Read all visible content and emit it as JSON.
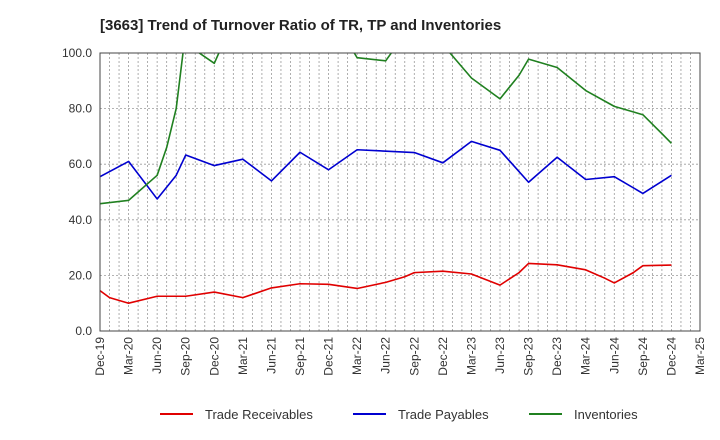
{
  "chart_data": {
    "type": "line",
    "title": "[3663]  Trend of Turnover Ratio of TR, TP and Inventories",
    "xlabel": "",
    "ylabel": "",
    "ylim": [
      0,
      100
    ],
    "y_ticks": [
      "0.0",
      "20.0",
      "40.0",
      "60.0",
      "80.0",
      "100.0"
    ],
    "x_ticks": [
      "Dec-19",
      "Mar-20",
      "Jun-20",
      "Sep-20",
      "Dec-20",
      "Mar-21",
      "Jun-21",
      "Sep-21",
      "Dec-21",
      "Mar-22",
      "Jun-22",
      "Sep-22",
      "Dec-22",
      "Mar-23",
      "Jun-23",
      "Sep-23",
      "Dec-23",
      "Mar-24",
      "Jun-24",
      "Sep-24",
      "Dec-24",
      "Mar-25"
    ],
    "x": [
      "Dec-19",
      "Jan-20",
      "Feb-20",
      "Mar-20",
      "Apr-20",
      "May-20",
      "Jun-20",
      "Jul-20",
      "Aug-20",
      "Sep-20",
      "Oct-20",
      "Nov-20",
      "Dec-20",
      "Jan-21",
      "Feb-21",
      "Mar-21",
      "Apr-21",
      "May-21",
      "Jun-21",
      "Jul-21",
      "Aug-21",
      "Sep-21",
      "Oct-21",
      "Nov-21",
      "Dec-21",
      "Jan-22",
      "Feb-22",
      "Mar-22",
      "Apr-22",
      "May-22",
      "Jun-22",
      "Jul-22",
      "Aug-22",
      "Sep-22",
      "Oct-22",
      "Nov-22",
      "Dec-22",
      "Jan-23",
      "Feb-23",
      "Mar-23",
      "Apr-23",
      "May-23",
      "Jun-23",
      "Jul-23",
      "Aug-23",
      "Sep-23",
      "Oct-23",
      "Nov-23",
      "Dec-23",
      "Jan-24",
      "Feb-24",
      "Mar-24",
      "Apr-24",
      "May-24",
      "Jun-24",
      "Jul-24",
      "Aug-24",
      "Sep-24",
      "Oct-24",
      "Nov-24",
      "Dec-24",
      "Jan-25",
      "Feb-25",
      "Mar-25"
    ],
    "grid": true,
    "legend_position": "bottom",
    "series": [
      {
        "name": "Trade Receivables",
        "color": "#e00000",
        "points": [
          [
            "Dec-19",
            14.5
          ],
          [
            "Jan-20",
            12
          ],
          [
            "Mar-20",
            10
          ],
          [
            "Jun-20",
            12.5
          ],
          [
            "Sep-20",
            12.5
          ],
          [
            "Dec-20",
            14
          ],
          [
            "Mar-21",
            12
          ],
          [
            "Jun-21",
            15.5
          ],
          [
            "Sep-21",
            17
          ],
          [
            "Dec-21",
            16.8
          ],
          [
            "Mar-22",
            15.3
          ],
          [
            "Jun-22",
            17.5
          ],
          [
            "Aug-22",
            19.5
          ],
          [
            "Sep-22",
            21
          ],
          [
            "Dec-22",
            21.5
          ],
          [
            "Mar-23",
            20.5
          ],
          [
            "Jun-23",
            16.5
          ],
          [
            "Aug-23",
            21
          ],
          [
            "Sep-23",
            24.3
          ],
          [
            "Dec-23",
            23.8
          ],
          [
            "Mar-24",
            22
          ],
          [
            "May-24",
            19
          ],
          [
            "Jun-24",
            17.3
          ],
          [
            "Aug-24",
            21
          ],
          [
            "Sep-24",
            23.5
          ],
          [
            "Dec-24",
            23.7
          ]
        ]
      },
      {
        "name": "Trade Payables",
        "color": "#0000d0",
        "points": [
          [
            "Dec-19",
            55.5
          ],
          [
            "Mar-20",
            61
          ],
          [
            "Jun-20",
            47.5
          ],
          [
            "Aug-20",
            56
          ],
          [
            "Sep-20",
            63.3
          ],
          [
            "Dec-20",
            59.5
          ],
          [
            "Mar-21",
            61.8
          ],
          [
            "Jun-21",
            54
          ],
          [
            "Sep-21",
            64.3
          ],
          [
            "Dec-21",
            58
          ],
          [
            "Mar-22",
            65.2
          ],
          [
            "Sep-22",
            64.2
          ],
          [
            "Dec-22",
            60.5
          ],
          [
            "Mar-23",
            68.2
          ],
          [
            "Jun-23",
            65
          ],
          [
            "Sep-23",
            53.5
          ],
          [
            "Dec-23",
            62.5
          ],
          [
            "Mar-24",
            54.5
          ],
          [
            "Jun-24",
            55.5
          ],
          [
            "Sep-24",
            49.5
          ],
          [
            "Dec-24",
            56
          ]
        ]
      },
      {
        "name": "Inventories",
        "color": "#208020",
        "points": [
          [
            "Dec-19",
            45.8
          ],
          [
            "Mar-20",
            47
          ],
          [
            "Jun-20",
            56
          ],
          [
            "Jul-20",
            66
          ],
          [
            "Aug-20",
            80
          ],
          [
            "Sep-20",
            108
          ],
          [
            "Oct-20",
            101
          ],
          [
            "Dec-20",
            96.3
          ],
          [
            "Jan-21",
            104
          ],
          [
            "Mar-21",
            115
          ],
          [
            "Dec-21",
            112
          ],
          [
            "Feb-22",
            104
          ],
          [
            "Mar-22",
            98.3
          ],
          [
            "Jun-22",
            97.2
          ],
          [
            "Jul-22",
            102
          ],
          [
            "Sep-22",
            108
          ],
          [
            "Dec-22",
            103
          ],
          [
            "Feb-23",
            95
          ],
          [
            "Mar-23",
            91
          ],
          [
            "Jun-23",
            83.5
          ],
          [
            "Aug-23",
            92
          ],
          [
            "Sep-23",
            97.8
          ],
          [
            "Dec-23",
            94.8
          ],
          [
            "Mar-24",
            86.5
          ],
          [
            "Jun-24",
            80.8
          ],
          [
            "Sep-24",
            77.8
          ],
          [
            "Nov-24",
            71
          ],
          [
            "Dec-24",
            67.5
          ]
        ]
      }
    ]
  }
}
